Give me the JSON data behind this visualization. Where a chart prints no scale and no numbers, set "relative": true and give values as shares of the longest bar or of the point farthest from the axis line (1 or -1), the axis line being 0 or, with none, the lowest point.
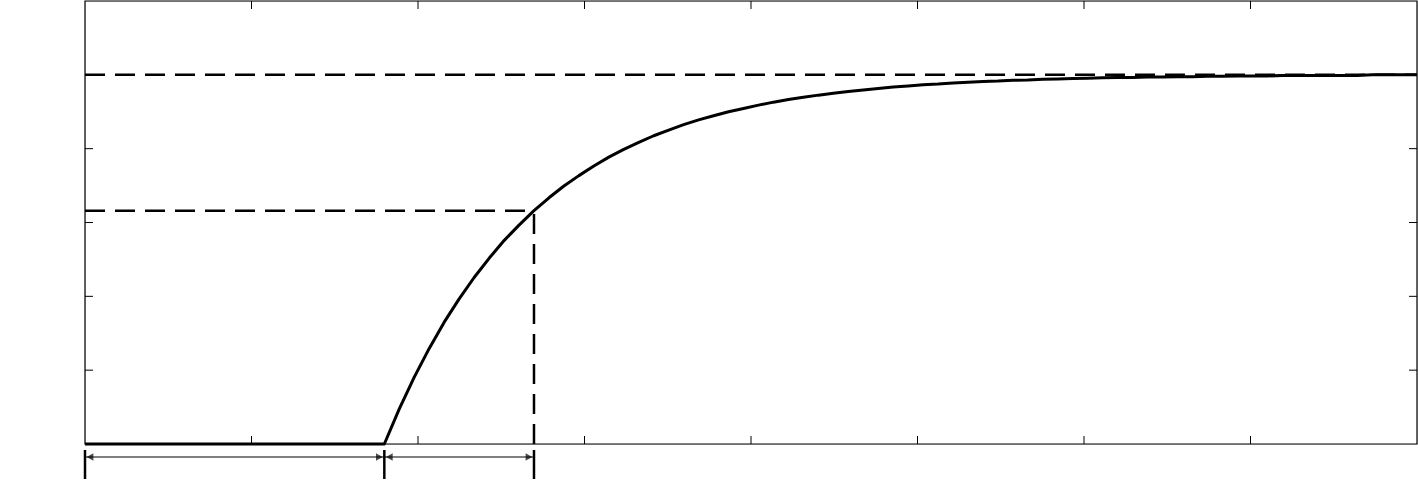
{
  "chart_data": {
    "type": "line",
    "relative": true,
    "categories": [
      null,
      null,
      null,
      null,
      null,
      null,
      null,
      null,
      null,
      null,
      null,
      null,
      null,
      null,
      null,
      null,
      null,
      null,
      null,
      null,
      null,
      null,
      null,
      null,
      null,
      null,
      null,
      null,
      null,
      null,
      null,
      null,
      null,
      null,
      null,
      null,
      null,
      null,
      null,
      null,
      null,
      null,
      null,
      null,
      null,
      null,
      null,
      null,
      null,
      null,
      null,
      null,
      null,
      null,
      null,
      null,
      null,
      null,
      null,
      null,
      null,
      null,
      null,
      null,
      null,
      null,
      null,
      null,
      null,
      null,
      null,
      null,
      null,
      null,
      null,
      null,
      null,
      null,
      null,
      null,
      null,
      null,
      null,
      null,
      null,
      null,
      null,
      null,
      null,
      null
    ],
    "series": [
      {
        "color": "#000000",
        "values": [
          0,
          0,
          0,
          0,
          0,
          0,
          0,
          0,
          0,
          0,
          0,
          0,
          0,
          0,
          0,
          0,
          0,
          0,
          0,
          0,
          0,
          0.095,
          0.181,
          0.259,
          0.33,
          0.393,
          0.451,
          0.503,
          0.551,
          0.593,
          0.632,
          0.667,
          0.699,
          0.727,
          0.753,
          0.777,
          0.798,
          0.817,
          0.835,
          0.85,
          0.865,
          0.878,
          0.889,
          0.9,
          0.909,
          0.918,
          0.926,
          0.933,
          0.939,
          0.945,
          0.95,
          0.955,
          0.959,
          0.963,
          0.967,
          0.97,
          0.973,
          0.975,
          0.978,
          0.98,
          0.982,
          0.983,
          0.985,
          0.986,
          0.988,
          0.989,
          0.99,
          0.991,
          0.992,
          0.993,
          0.993,
          0.994,
          0.994,
          0.995,
          0.995,
          0.996,
          0.996,
          0.997,
          0.997,
          0.997,
          0.998,
          0.998,
          0.998,
          0.998,
          0.998,
          0.998,
          1,
          1,
          1,
          1
        ]
      }
    ],
    "ref_lines": [
      {
        "axis": "y",
        "value": 1,
        "color": "#000000",
        "line_style": "dashed"
      },
      {
        "axis": "y",
        "value": 0.632,
        "color": "#000000",
        "line_style": "dashed"
      }
    ],
    "line_style": "solid",
    "marker": "none",
    "grid": false,
    "tick_labels": false
  }
}
